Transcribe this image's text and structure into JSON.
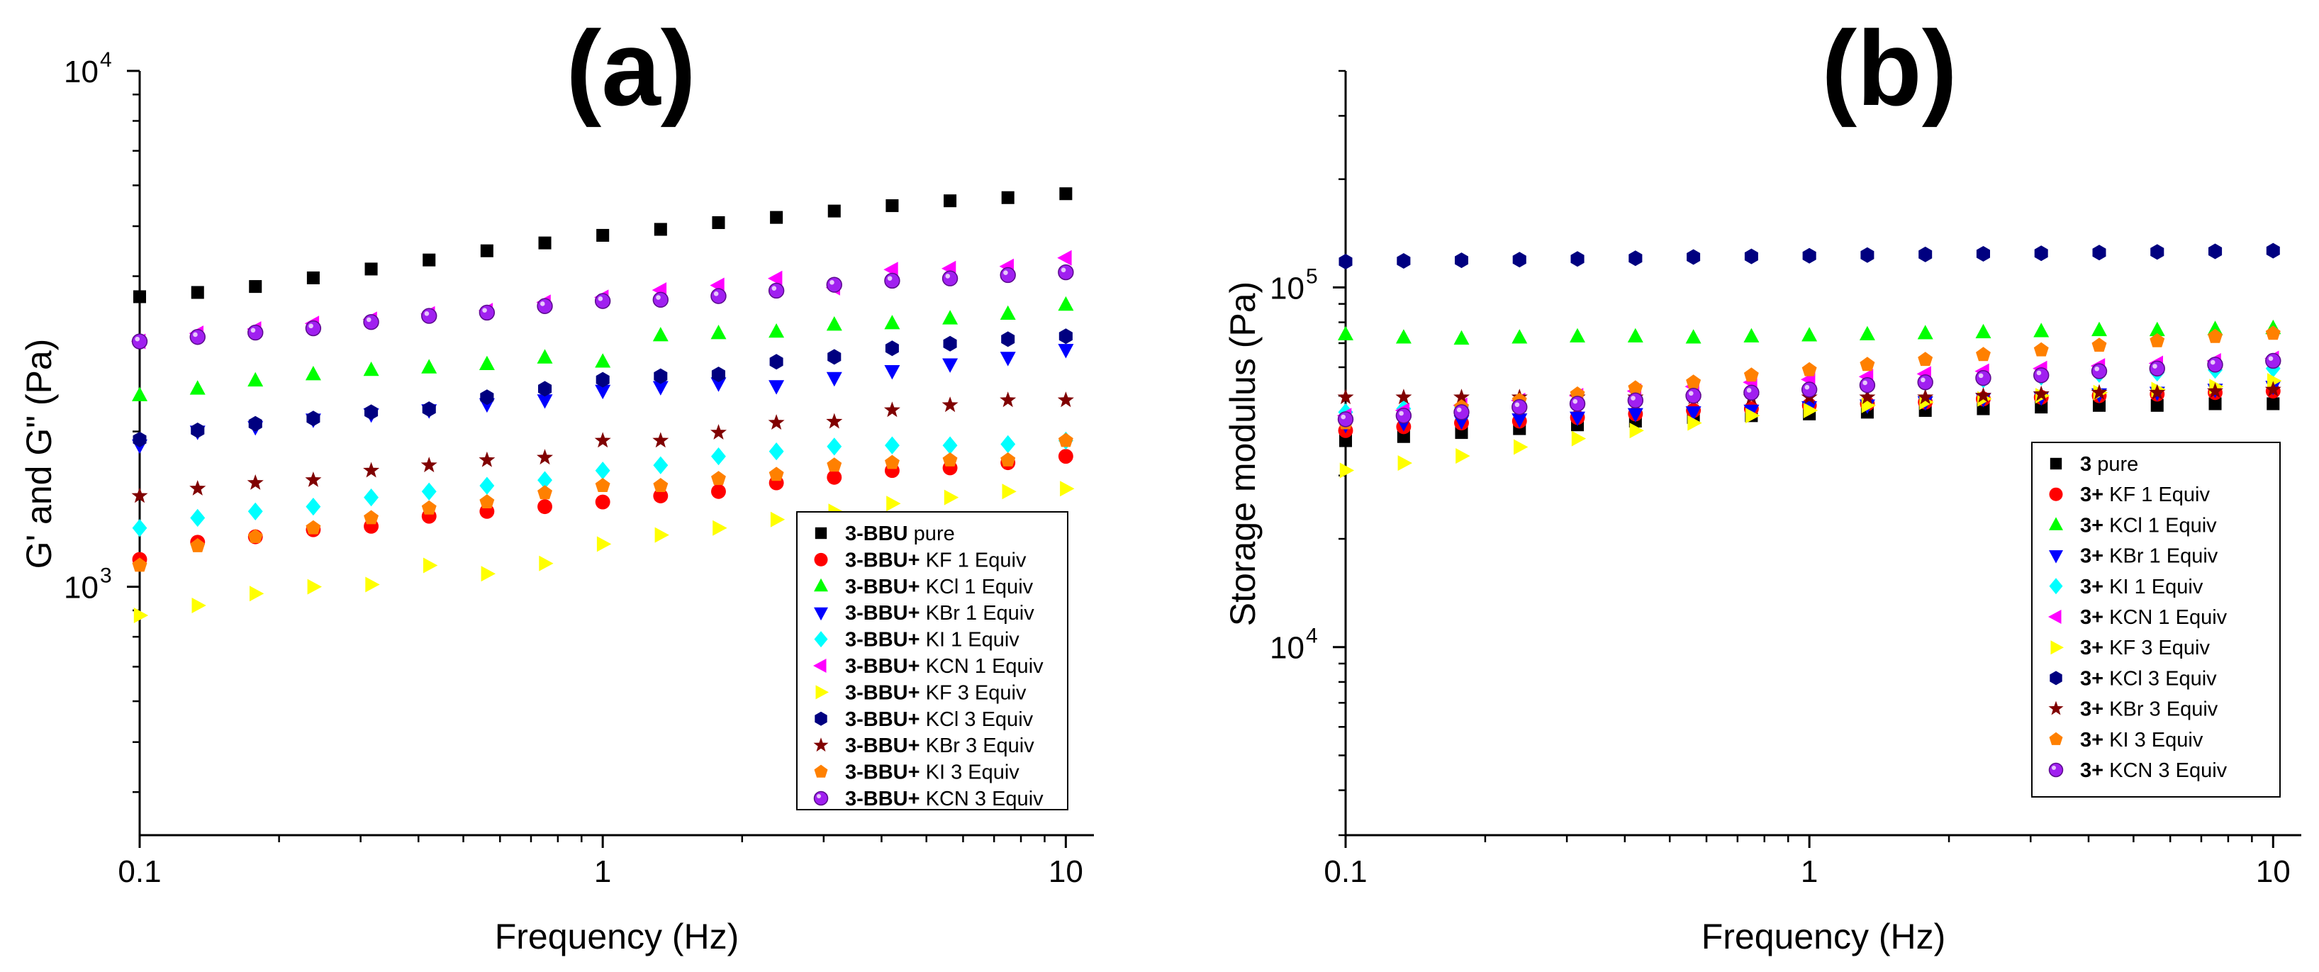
{
  "chart_data": [
    {
      "panel": "(a)",
      "type": "scatter",
      "xlabel": "Frequency (Hz)",
      "ylabel": "G' and G\" (Pa)",
      "x_scale": "log",
      "y_scale": "log",
      "xlim": [
        0.1,
        11.5
      ],
      "ylim": [
        330,
        10000
      ],
      "x_ticks": [
        {
          "value": 0.1,
          "label": "0.1"
        },
        {
          "value": 1,
          "label": "1"
        },
        {
          "value": 10,
          "label": "10"
        }
      ],
      "y_ticks": [
        {
          "value": 1000,
          "base": "10",
          "exp": "3"
        },
        {
          "value": 10000,
          "base": "10",
          "exp": "4"
        }
      ],
      "legend_position": "bottom-right",
      "x": [
        0.1,
        0.1334,
        0.1778,
        0.2371,
        0.3162,
        0.4217,
        0.5623,
        0.7499,
        1.0,
        1.3335,
        1.7783,
        2.3714,
        3.1623,
        4.217,
        5.6234,
        7.4989,
        10.0
      ],
      "series": [
        {
          "name_bold": "3-BBU",
          "name_rest": " pure",
          "marker": "square",
          "color": "#000000",
          "values": [
            3650,
            3720,
            3820,
            3970,
            4130,
            4300,
            4480,
            4640,
            4800,
            4930,
            5080,
            5200,
            5350,
            5480,
            5600,
            5680,
            5780
          ]
        },
        {
          "name_bold": "3-BBU+",
          "name_rest": " KF 1 Equiv",
          "marker": "circle",
          "color": "#ff0000",
          "values": [
            1130,
            1220,
            1250,
            1290,
            1310,
            1370,
            1400,
            1430,
            1460,
            1500,
            1530,
            1590,
            1630,
            1680,
            1700,
            1740,
            1790
          ]
        },
        {
          "name_bold": "3-BBU+",
          "name_rest": " KCl 1 Equiv",
          "marker": "triangle-up",
          "color": "#00ff00",
          "values": [
            2350,
            2420,
            2510,
            2580,
            2630,
            2660,
            2700,
            2780,
            2730,
            3070,
            3100,
            3120,
            3220,
            3240,
            3310,
            3380,
            3520
          ]
        },
        {
          "name_bold": "3-BBU+",
          "name_rest": " KBr 1 Equiv",
          "marker": "triangle-down",
          "color": "#0000ff",
          "values": [
            1880,
            2000,
            2040,
            2110,
            2160,
            2200,
            2260,
            2300,
            2400,
            2440,
            2480,
            2450,
            2540,
            2620,
            2700,
            2780,
            2880
          ]
        },
        {
          "name_bold": "3-BBU+",
          "name_rest": " KI 1 Equiv",
          "marker": "diamond",
          "color": "#00ffff",
          "values": [
            1300,
            1360,
            1400,
            1430,
            1490,
            1530,
            1570,
            1610,
            1680,
            1720,
            1790,
            1830,
            1870,
            1880,
            1880,
            1890,
            1920
          ]
        },
        {
          "name_bold": "3-BBU+",
          "name_rest": " KCN 1 Equiv",
          "marker": "triangle-left",
          "color": "#ff00ff",
          "values": [
            2990,
            3100,
            3160,
            3240,
            3300,
            3380,
            3430,
            3560,
            3640,
            3760,
            3840,
            3960,
            3800,
            4120,
            4140,
            4180,
            4340
          ]
        },
        {
          "name_bold": "3-BBU+",
          "name_rest": " KF 3 Equiv",
          "marker": "triangle-right",
          "color": "#ffff00",
          "values": [
            880,
            920,
            970,
            1000,
            1010,
            1100,
            1060,
            1110,
            1210,
            1260,
            1300,
            1350,
            1400,
            1450,
            1490,
            1530,
            1550
          ]
        },
        {
          "name_bold": "3-BBU+",
          "name_rest": " KCl 3 Equiv",
          "marker": "hexagon",
          "color": "#000080",
          "values": [
            1930,
            2010,
            2070,
            2120,
            2180,
            2210,
            2330,
            2420,
            2520,
            2560,
            2580,
            2730,
            2790,
            2900,
            2960,
            3020,
            3060
          ]
        },
        {
          "name_bold": "3-BBU+",
          "name_rest": " KBr 3 Equiv",
          "marker": "star",
          "color": "#800000",
          "values": [
            1500,
            1550,
            1590,
            1610,
            1680,
            1720,
            1760,
            1780,
            1920,
            1920,
            1990,
            2080,
            2090,
            2200,
            2250,
            2300,
            2300
          ]
        },
        {
          "name_bold": "3-BBU+",
          "name_rest": " KI 3 Equiv",
          "marker": "pentagon",
          "color": "#ff8000",
          "values": [
            1100,
            1200,
            1250,
            1300,
            1360,
            1420,
            1460,
            1520,
            1570,
            1570,
            1620,
            1650,
            1720,
            1740,
            1760,
            1760,
            1920
          ]
        },
        {
          "name_bold": "3-BBU+",
          "name_rest": " KCN 3 Equiv",
          "marker": "sphere",
          "color": "#a020f0",
          "values": [
            2990,
            3050,
            3110,
            3170,
            3260,
            3350,
            3400,
            3500,
            3580,
            3600,
            3660,
            3750,
            3850,
            3920,
            3960,
            4020,
            4070
          ]
        }
      ]
    },
    {
      "panel": "(b)",
      "type": "scatter",
      "xlabel": "Frequency (Hz)",
      "ylabel": "Storage modulus  (Pa)",
      "x_scale": "log",
      "y_scale": "log",
      "xlim": [
        0.1,
        11.5
      ],
      "ylim": [
        3000,
        400000
      ],
      "x_ticks": [
        {
          "value": 0.1,
          "label": "0.1"
        },
        {
          "value": 1,
          "label": "1"
        },
        {
          "value": 10,
          "label": "10"
        }
      ],
      "y_ticks": [
        {
          "value": 10000,
          "base": "10",
          "exp": "4"
        },
        {
          "value": 100000,
          "base": "10",
          "exp": "5"
        }
      ],
      "legend_position": "bottom-right",
      "x": [
        0.1,
        0.1334,
        0.1778,
        0.2371,
        0.3162,
        0.4217,
        0.5623,
        0.7499,
        1.0,
        1.3335,
        1.7783,
        2.3714,
        3.1623,
        4.217,
        5.6234,
        7.4989,
        10.0
      ],
      "series": [
        {
          "name_bold": "3",
          "name_rest": " pure",
          "marker": "square",
          "color": "#000000",
          "values": [
            37500,
            38500,
            39500,
            40500,
            41500,
            42500,
            43500,
            44000,
            44500,
            45000,
            45500,
            46000,
            46500,
            47000,
            47000,
            47500,
            47500
          ]
        },
        {
          "name_bold": "3+",
          "name_rest": " KF 1 Equiv",
          "marker": "circle",
          "color": "#ff0000",
          "values": [
            40000,
            41000,
            42000,
            42500,
            43500,
            44500,
            45500,
            46000,
            47000,
            47500,
            48000,
            49000,
            49500,
            50000,
            50500,
            51000,
            51500
          ]
        },
        {
          "name_bold": "3+",
          "name_rest": " KCl 1 Equiv",
          "marker": "triangle-up",
          "color": "#00ff00",
          "values": [
            74000,
            72500,
            72000,
            72500,
            73000,
            73000,
            72500,
            73000,
            73500,
            74000,
            74500,
            75000,
            75500,
            76000,
            76000,
            76500,
            77000
          ]
        },
        {
          "name_bold": "3+",
          "name_rest": " KBr 1 Equiv",
          "marker": "triangle-down",
          "color": "#0000ff",
          "values": [
            41500,
            42000,
            42500,
            43000,
            43500,
            44500,
            45000,
            45500,
            46500,
            47000,
            48000,
            49000,
            49500,
            50500,
            51000,
            52000,
            53000
          ]
        },
        {
          "name_bold": "3+",
          "name_rest": " KI 1 Equiv",
          "marker": "diamond",
          "color": "#00ffff",
          "values": [
            45000,
            46000,
            46500,
            47500,
            48500,
            49500,
            50500,
            51500,
            52500,
            53500,
            54500,
            55500,
            56500,
            57500,
            58000,
            59000,
            59500
          ]
        },
        {
          "name_bold": "3+",
          "name_rest": " KCN 1 Equiv",
          "marker": "triangle-left",
          "color": "#ff00ff",
          "values": [
            44000,
            45500,
            47000,
            48500,
            50000,
            51500,
            53000,
            54500,
            55500,
            56500,
            57500,
            58500,
            59500,
            60500,
            61500,
            62500,
            63500
          ]
        },
        {
          "name_bold": "3+",
          "name_rest": " KF 3 Equiv",
          "marker": "triangle-right",
          "color": "#ffff00",
          "values": [
            31000,
            32500,
            34000,
            36000,
            38000,
            40000,
            42000,
            44000,
            45500,
            47000,
            48000,
            49000,
            50000,
            51000,
            52000,
            53000,
            55000
          ]
        },
        {
          "name_bold": "3+",
          "name_rest": " KCl 3 Equiv",
          "marker": "hexagon",
          "color": "#000080",
          "values": [
            118000,
            118500,
            119000,
            119500,
            120000,
            120500,
            121500,
            122000,
            122500,
            123000,
            123500,
            124000,
            124500,
            125000,
            125500,
            126000,
            126500
          ]
        },
        {
          "name_bold": "3+",
          "name_rest": " KBr 3 Equiv",
          "marker": "star",
          "color": "#800000",
          "values": [
            49500,
            49500,
            49500,
            49500,
            49500,
            49500,
            49500,
            49500,
            49500,
            49500,
            49500,
            50000,
            50500,
            51000,
            51000,
            51500,
            52000
          ]
        },
        {
          "name_bold": "3+",
          "name_rest": " KI 3 Equiv",
          "marker": "pentagon",
          "color": "#ff8000",
          "values": [
            42000,
            44000,
            46500,
            48500,
            50500,
            52500,
            54500,
            57000,
            59000,
            61000,
            63000,
            65000,
            67000,
            69000,
            71000,
            73000,
            74500
          ]
        },
        {
          "name_bold": "3+",
          "name_rest": " KCN 3 Equiv",
          "marker": "sphere",
          "color": "#a020f0",
          "values": [
            43000,
            44000,
            45000,
            46500,
            47500,
            48500,
            50000,
            51000,
            52000,
            53500,
            54500,
            56000,
            57000,
            58500,
            59500,
            61000,
            62500
          ]
        }
      ]
    }
  ]
}
